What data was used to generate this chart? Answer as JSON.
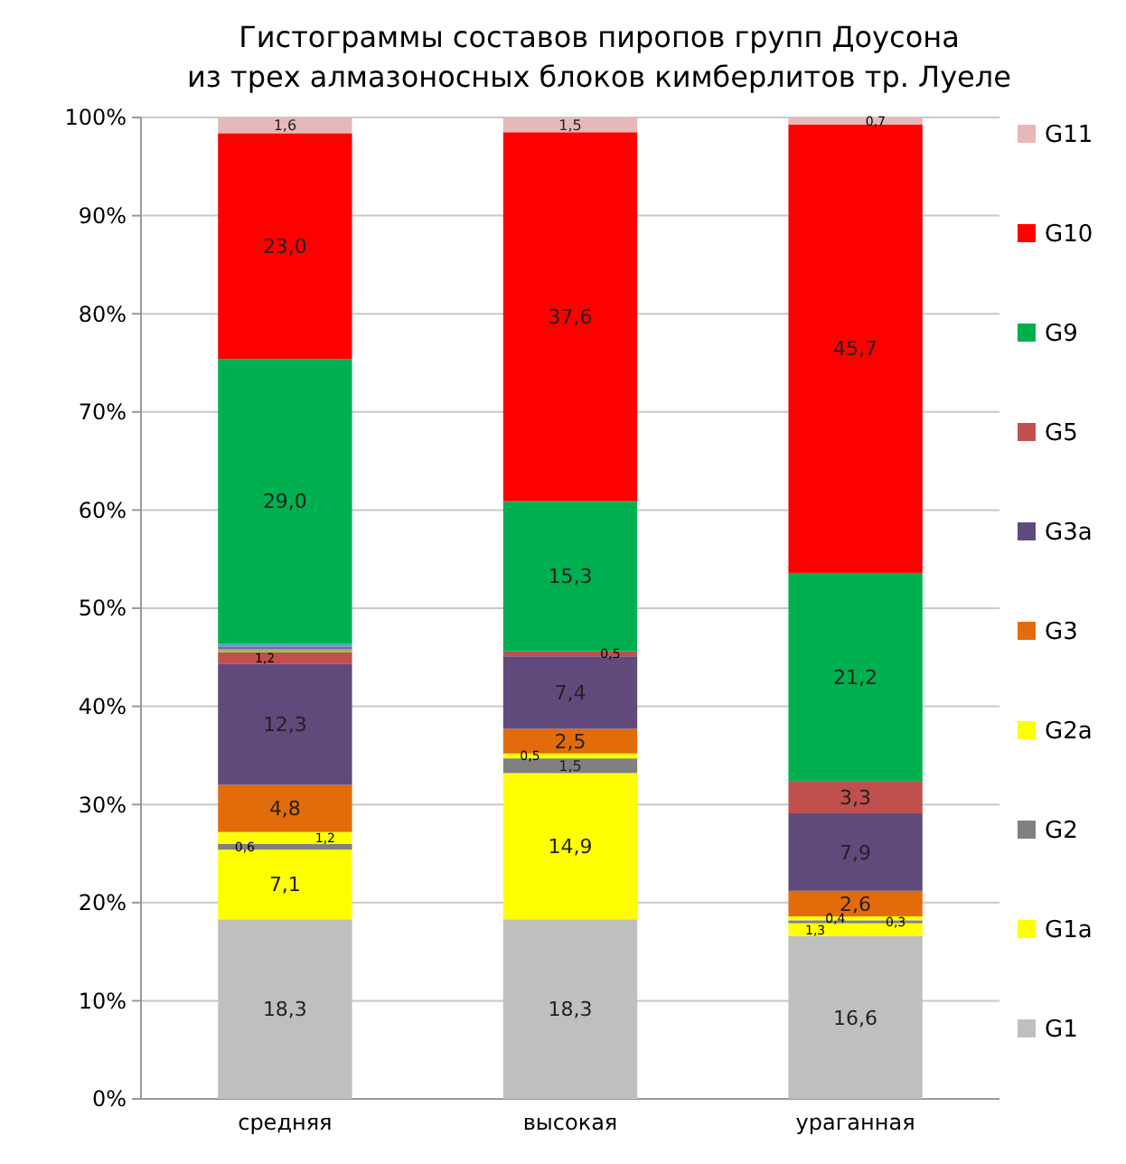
{
  "chart_data": {
    "type": "bar",
    "stacked": true,
    "title": "Гистограммы  составов  пиропов  групп Доусона\nиз трех алмазоносных блоков кимберлитов тр. Луеле",
    "categories": [
      "средняя",
      "высокая",
      "ураганная"
    ],
    "ylim": [
      0,
      100
    ],
    "yticks": [
      {
        "value": 0,
        "label": "0%"
      },
      {
        "value": 10,
        "label": "10%"
      },
      {
        "value": 20,
        "label": "20%"
      },
      {
        "value": 30,
        "label": "30%"
      },
      {
        "value": 40,
        "label": "40%"
      },
      {
        "value": 50,
        "label": "50%"
      },
      {
        "value": 60,
        "label": "60%"
      },
      {
        "value": 70,
        "label": "70%"
      },
      {
        "value": 80,
        "label": "80%"
      },
      {
        "value": 90,
        "label": "90%"
      },
      {
        "value": 100,
        "label": "100%"
      }
    ],
    "grid": "y",
    "legend": "right",
    "series": [
      {
        "name": "G1",
        "color": "#bfbfbf",
        "values": [
          18.3,
          18.3,
          16.6
        ],
        "value_labels": [
          "18,3",
          "18,3",
          "16,6"
        ]
      },
      {
        "name": "G1a",
        "color": "#ffff00",
        "values": [
          7.1,
          14.9,
          1.3
        ],
        "value_labels": [
          "7,1",
          "14,9",
          "1,3"
        ]
      },
      {
        "name": "G2",
        "color": "#808080",
        "values": [
          0.6,
          1.5,
          0.3
        ],
        "value_labels": [
          "0,6",
          "1,5",
          "0,3"
        ]
      },
      {
        "name": "G2a",
        "color": "#ffff00",
        "values": [
          1.2,
          0.5,
          0.4
        ],
        "value_labels": [
          "1,2",
          "0,5",
          "0,4"
        ]
      },
      {
        "name": "G3",
        "color": "#e36c0a",
        "values": [
          4.8,
          2.5,
          2.6
        ],
        "value_labels": [
          "4,8",
          "2,5",
          "2,6"
        ]
      },
      {
        "name": "G3a",
        "color": "#604a7b",
        "values": [
          12.3,
          7.4,
          7.9
        ],
        "value_labels": [
          "12,3",
          "7,4",
          "7,9"
        ]
      },
      {
        "name": "G5",
        "color": "#c0504d",
        "values": [
          1.2,
          0.5,
          3.3
        ],
        "value_labels": [
          "1,2",
          "0,5",
          "3,3"
        ]
      },
      {
        "color": "#9bbb59",
        "values": [
          0.3,
          0,
          0
        ]
      },
      {
        "color": "#8064a2",
        "values": [
          0.3,
          0,
          0
        ]
      },
      {
        "color": "#4bacc6",
        "values": [
          0.3,
          0,
          0
        ]
      },
      {
        "name": "G9",
        "color": "#00b050",
        "values": [
          29.0,
          15.3,
          21.2
        ],
        "value_labels": [
          "29,0",
          "15,3",
          "21,2"
        ]
      },
      {
        "name": "G10",
        "color": "#ff0000",
        "values": [
          23.0,
          37.6,
          45.7
        ],
        "value_labels": [
          "23,0",
          "37,6",
          "45,7"
        ]
      },
      {
        "name": "G11",
        "color": "#e6b9b8",
        "values": [
          1.6,
          1.5,
          0.7
        ],
        "value_labels": [
          "1,6",
          "1,5",
          "0,7"
        ]
      }
    ]
  }
}
